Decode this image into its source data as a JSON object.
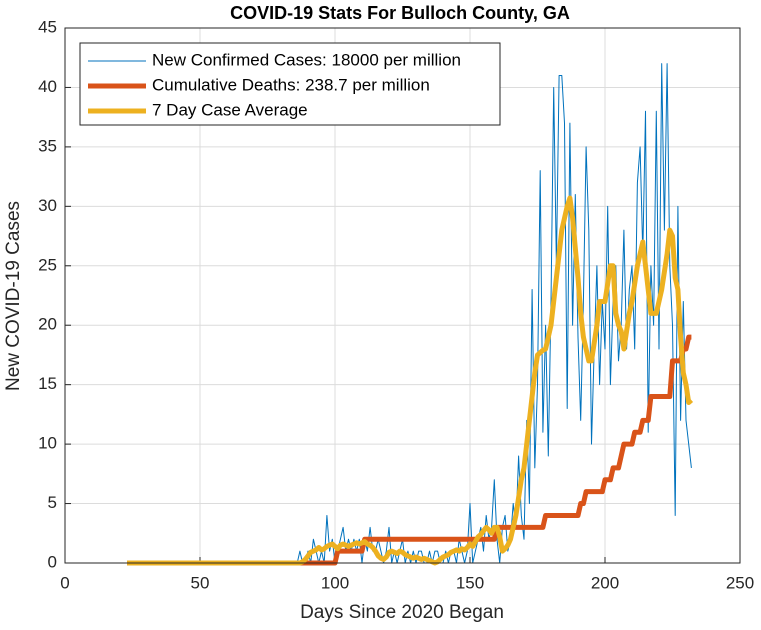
{
  "chart_data": {
    "type": "line",
    "title": "COVID-19 Stats For Bulloch County, GA",
    "xlabel": "Days Since 2020 Began",
    "ylabel": "New COVID-19 Cases",
    "xlim": [
      0,
      250
    ],
    "xticks": [
      0,
      50,
      100,
      150,
      200,
      250
    ],
    "ylim": [
      0,
      45
    ],
    "yticks": [
      0,
      5,
      10,
      15,
      20,
      25,
      30,
      35,
      40,
      45
    ],
    "grid": true,
    "legend": "top-left",
    "x": [
      23,
      24,
      25,
      26,
      27,
      28,
      29,
      30,
      31,
      32,
      33,
      34,
      35,
      36,
      37,
      38,
      39,
      40,
      41,
      42,
      43,
      44,
      45,
      46,
      47,
      48,
      49,
      50,
      51,
      52,
      53,
      54,
      55,
      56,
      57,
      58,
      59,
      60,
      61,
      62,
      63,
      64,
      65,
      66,
      67,
      68,
      69,
      70,
      71,
      72,
      73,
      74,
      75,
      76,
      77,
      78,
      79,
      80,
      81,
      82,
      83,
      84,
      85,
      86,
      87,
      88,
      89,
      90,
      91,
      92,
      93,
      94,
      95,
      96,
      97,
      98,
      99,
      100,
      101,
      102,
      103,
      104,
      105,
      106,
      107,
      108,
      109,
      110,
      111,
      112,
      113,
      114,
      115,
      116,
      117,
      118,
      119,
      120,
      121,
      122,
      123,
      124,
      125,
      126,
      127,
      128,
      129,
      130,
      131,
      132,
      133,
      134,
      135,
      136,
      137,
      138,
      139,
      140,
      141,
      142,
      143,
      144,
      145,
      146,
      147,
      148,
      149,
      150,
      151,
      152,
      153,
      154,
      155,
      156,
      157,
      158,
      159,
      160,
      161,
      162,
      163,
      164,
      165,
      166,
      167,
      168,
      169,
      170,
      171,
      172,
      173,
      174,
      175,
      176,
      177,
      178,
      179,
      180,
      181,
      182,
      183,
      184,
      185,
      186,
      187,
      188,
      189,
      190,
      191,
      192,
      193,
      194,
      195,
      196,
      197,
      198,
      199,
      200,
      201,
      202,
      203,
      204,
      205,
      206,
      207,
      208,
      209,
      210,
      211,
      212,
      213,
      214,
      215,
      216,
      217,
      218,
      219,
      220,
      221,
      222,
      223,
      224,
      225,
      226,
      227,
      228,
      229,
      230,
      231,
      232
    ],
    "series": [
      {
        "name": "New Confirmed Cases: 18000 per million",
        "color": "#0072BD",
        "width": 1,
        "values": [
          0,
          0,
          0,
          0,
          0,
          0,
          0,
          0,
          0,
          0,
          0,
          0,
          0,
          0,
          0,
          0,
          0,
          0,
          0,
          0,
          0,
          0,
          0,
          0,
          0,
          0,
          0,
          0,
          0,
          0,
          0,
          0,
          0,
          0,
          0,
          0,
          0,
          0,
          0,
          0,
          0,
          0,
          0,
          0,
          0,
          0,
          0,
          0,
          0,
          0,
          0,
          0,
          0,
          0,
          0,
          0,
          0,
          0,
          0,
          0,
          0,
          0,
          0,
          0,
          1,
          0,
          0,
          1,
          0,
          2,
          1,
          0,
          1,
          0,
          4,
          1,
          2,
          0,
          1,
          2,
          3,
          1,
          2,
          1,
          2,
          1,
          2,
          0,
          2,
          1,
          3,
          1,
          1,
          2,
          1,
          0,
          1,
          3,
          0,
          1,
          0,
          1,
          2,
          0,
          1,
          0,
          1,
          0,
          1,
          1,
          0,
          0,
          1,
          0,
          1,
          1,
          0,
          0,
          1,
          0,
          1,
          1,
          0,
          2,
          1,
          0,
          1,
          5,
          0,
          1,
          2,
          3,
          1,
          4,
          2,
          3,
          7,
          2,
          0,
          3,
          4,
          1,
          2,
          5,
          3,
          9,
          4,
          2,
          12,
          5,
          23,
          8,
          15,
          33,
          11,
          20,
          9,
          22,
          40,
          25,
          41,
          41,
          37,
          13,
          37,
          20,
          31,
          19,
          12,
          22,
          35,
          28,
          10,
          18,
          25,
          15,
          22,
          18,
          30,
          15,
          22,
          25,
          17,
          20,
          28,
          18,
          23,
          25,
          18,
          32,
          35,
          26,
          38,
          11,
          25,
          20,
          38,
          18,
          42,
          28,
          42,
          25,
          20,
          4,
          30,
          12,
          22,
          12,
          10,
          8
        ]
      },
      {
        "name": "Cumulative Deaths: 238.7 per million",
        "color": "#D95319",
        "width": 5,
        "values": [
          0,
          0,
          0,
          0,
          0,
          0,
          0,
          0,
          0,
          0,
          0,
          0,
          0,
          0,
          0,
          0,
          0,
          0,
          0,
          0,
          0,
          0,
          0,
          0,
          0,
          0,
          0,
          0,
          0,
          0,
          0,
          0,
          0,
          0,
          0,
          0,
          0,
          0,
          0,
          0,
          0,
          0,
          0,
          0,
          0,
          0,
          0,
          0,
          0,
          0,
          0,
          0,
          0,
          0,
          0,
          0,
          0,
          0,
          0,
          0,
          0,
          0,
          0,
          0,
          0,
          0,
          0,
          0,
          0,
          0,
          0,
          0,
          0,
          0,
          0,
          0,
          0,
          0,
          1,
          1,
          1,
          1,
          1,
          1,
          1,
          1,
          1,
          1,
          2,
          2,
          2,
          2,
          2,
          2,
          2,
          2,
          2,
          2,
          2,
          2,
          2,
          2,
          2,
          2,
          2,
          2,
          2,
          2,
          2,
          2,
          2,
          2,
          2,
          2,
          2,
          2,
          2,
          2,
          2,
          2,
          2,
          2,
          2,
          2,
          2,
          2,
          2,
          2,
          2,
          2,
          2,
          2,
          2,
          2,
          2,
          2,
          2,
          3,
          3,
          3,
          3,
          3,
          3,
          3,
          3,
          3,
          3,
          3,
          3,
          3,
          3,
          3,
          3,
          3,
          3,
          4,
          4,
          4,
          4,
          4,
          4,
          4,
          4,
          4,
          4,
          4,
          4,
          4,
          5,
          5,
          6,
          6,
          6,
          6,
          6,
          6,
          6,
          7,
          7,
          7,
          8,
          8,
          8,
          9,
          10,
          10,
          10,
          10,
          11,
          11,
          11,
          12,
          12,
          12,
          14,
          14,
          14,
          14,
          14,
          14,
          14,
          14,
          17,
          17,
          17,
          17,
          18,
          18,
          19,
          19
        ]
      },
      {
        "name": "7 Day Case Average",
        "color": "#EDB120",
        "width": 5,
        "values": [
          0,
          0,
          0,
          0,
          0,
          0,
          0,
          0,
          0,
          0,
          0,
          0,
          0,
          0,
          0,
          0,
          0,
          0,
          0,
          0,
          0,
          0,
          0,
          0,
          0,
          0,
          0,
          0,
          0,
          0,
          0,
          0,
          0,
          0,
          0,
          0,
          0,
          0,
          0,
          0,
          0,
          0,
          0,
          0,
          0,
          0,
          0,
          0,
          0,
          0,
          0,
          0,
          0,
          0,
          0,
          0,
          0,
          0,
          0,
          0,
          0,
          0,
          0,
          0,
          0,
          0.1,
          0.3,
          0.6,
          0.9,
          1,
          1.1,
          1.3,
          1.1,
          1.2,
          1.4,
          1.5,
          1.6,
          1.4,
          1.2,
          1.5,
          1.6,
          1.5,
          1.4,
          1.5,
          1.6,
          1.7,
          1.6,
          1.7,
          1.8,
          1.6,
          1.5,
          1.3,
          1,
          0.6,
          0.4,
          0.3,
          0.5,
          0.9,
          1,
          0.9,
          0.8,
          1,
          0.9,
          0.7,
          0.6,
          0.5,
          0.4,
          0.5,
          0.4,
          0.3,
          0.4,
          0.3,
          0.2,
          0.1,
          0,
          0.1,
          0.3,
          0.5,
          0.6,
          0.7,
          0.9,
          1,
          1.1,
          1,
          1.2,
          1.1,
          1.3,
          1.6,
          1.4,
          1.8,
          2.2,
          2.4,
          2.7,
          3,
          2.8,
          2.5,
          3,
          3,
          2.2,
          1,
          1.2,
          1.5,
          2,
          3,
          4,
          5.5,
          7,
          8,
          10,
          12,
          14,
          16,
          17.5,
          17.7,
          17.9,
          18,
          19,
          20,
          22,
          24,
          26,
          28,
          29,
          30,
          30.7,
          29,
          26.5,
          24,
          21,
          19,
          18,
          17,
          17,
          18.5,
          20,
          22,
          22,
          22,
          23.5,
          25,
          25,
          21,
          20,
          19.5,
          18,
          19.5,
          21,
          22,
          23.5,
          25,
          26,
          27,
          25,
          23,
          21,
          21,
          21,
          22,
          23,
          24.5,
          26,
          28,
          27.5,
          24,
          23,
          19,
          16,
          15,
          13.5,
          13.7
        ]
      }
    ]
  }
}
